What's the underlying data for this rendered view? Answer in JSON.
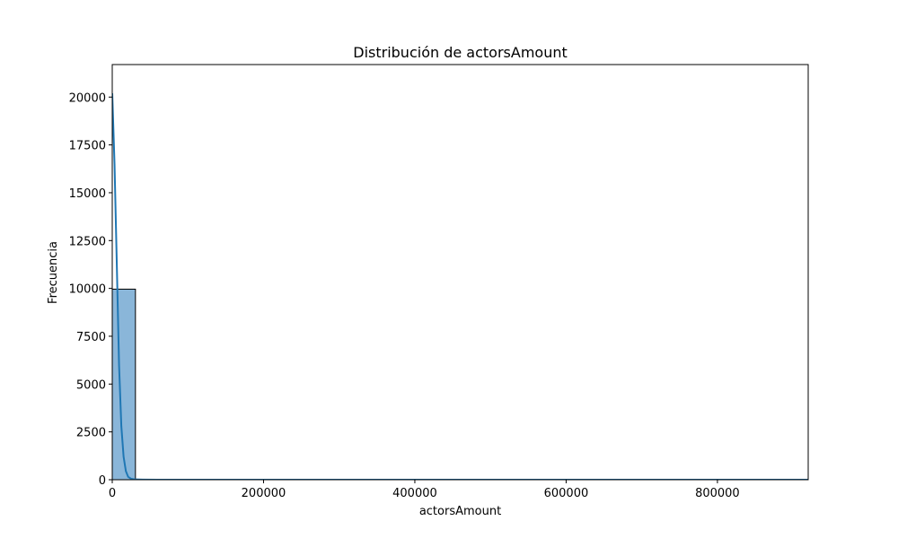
{
  "chart_data": {
    "type": "bar",
    "subtype": "histogram-with-kde",
    "title": "Distribución de actorsAmount",
    "xlabel": "actorsAmount",
    "ylabel": "Frecuencia",
    "xlim": [
      0,
      920000
    ],
    "ylim": [
      0,
      21700
    ],
    "x_ticks": [
      0,
      200000,
      400000,
      600000,
      800000
    ],
    "x_tick_labels": [
      "0",
      "200000",
      "400000",
      "600000",
      "800000"
    ],
    "y_ticks": [
      0,
      2500,
      5000,
      7500,
      10000,
      12500,
      15000,
      17500,
      20000
    ],
    "y_tick_labels": [
      "0",
      "2500",
      "5000",
      "7500",
      "10000",
      "12500",
      "15000",
      "17500",
      "20000"
    ],
    "bin_width": 30667,
    "bins": [
      {
        "x0": 0,
        "x1": 30667,
        "count": 9960
      },
      {
        "x0": 30667,
        "x1": 920000,
        "count": 2
      }
    ],
    "kde": {
      "x": [
        0,
        3000,
        6000,
        9000,
        12000,
        15000,
        18000,
        21000,
        25000,
        30000,
        40000,
        60000,
        100000,
        200000,
        400000,
        600000,
        800000,
        920000
      ],
      "y": [
        20200,
        16500,
        11300,
        6000,
        2800,
        1200,
        450,
        150,
        50,
        15,
        5,
        2,
        1,
        1,
        1,
        1,
        1,
        1
      ]
    },
    "grid": false,
    "colors": {
      "bar_fill": "#8ab6d9",
      "bar_edge": "#000000",
      "kde_line": "#1f77b4"
    }
  }
}
